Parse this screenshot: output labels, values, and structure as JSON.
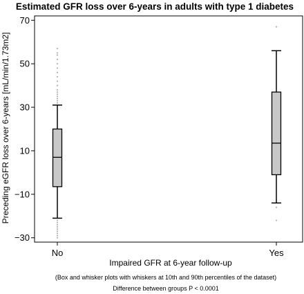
{
  "chart_data": {
    "type": "box",
    "title": "Estimated GFR loss over 6-years in adults with type 1 diabetes",
    "xlabel": "Impaired GFR at 6-year follow-up",
    "ylabel": "Preceding eGFR loss over 6-years [mL/min/1.73m2]",
    "ylim": [
      -32,
      72
    ],
    "yticks": [
      -30,
      -10,
      10,
      30,
      50,
      70
    ],
    "categories": [
      "No",
      "Yes"
    ],
    "boxes": [
      {
        "category": "No",
        "whisker_low": -21,
        "q1": -6.5,
        "median": 7,
        "q3": 20,
        "whisker_high": 31,
        "outliers": [
          -22,
          -23,
          -24,
          -25,
          -26,
          -27,
          -28,
          -29,
          -30,
          32,
          33,
          34,
          35,
          36,
          37,
          38,
          40,
          42,
          44,
          46,
          48,
          50,
          52,
          54,
          55,
          57
        ]
      },
      {
        "category": "Yes",
        "whisker_low": -14,
        "q1": -1,
        "median": 13.5,
        "q3": 37,
        "whisker_high": 56,
        "outliers": [
          -16,
          -22,
          67
        ]
      }
    ],
    "grid": false,
    "notes": [
      "(Box and whisker plots with whiskers at 10th and 90th percentiles of the dataset)",
      "Difference between groups P < 0.0001"
    ],
    "colors": {
      "box_fill": "#c8c8c8",
      "outlier": "#b0b0b0",
      "stroke": "#000000"
    }
  }
}
